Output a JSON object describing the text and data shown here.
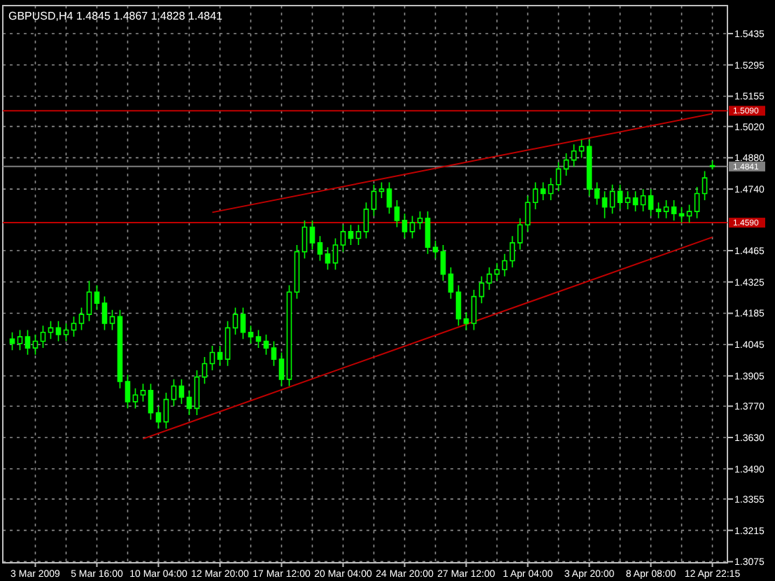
{
  "chart_data": {
    "type": "candlestick",
    "title": "GBPUSD,H4  1.4845 1.4867 1.4828 1.4841",
    "categories": [
      null,
      null,
      null,
      "3 Mar 2009",
      null,
      null,
      null,
      null,
      null,
      null,
      null,
      "5 Mar 16:00",
      null,
      null,
      null,
      null,
      null,
      null,
      null,
      "10 Mar 04:00",
      null,
      null,
      null,
      null,
      null,
      null,
      null,
      "12 Mar 20:00",
      null,
      null,
      null,
      null,
      null,
      null,
      null,
      "17 Mar 12:00",
      null,
      null,
      null,
      null,
      null,
      null,
      null,
      "20 Mar 04:00",
      null,
      null,
      null,
      null,
      null,
      null,
      null,
      "24 Mar 20:00",
      null,
      null,
      null,
      null,
      null,
      null,
      null,
      "27 Mar 12:00",
      null,
      null,
      null,
      null,
      null,
      null,
      null,
      "1 Apr 04:00",
      null,
      null,
      null,
      null,
      null,
      null,
      null,
      "3 Apr 20:00",
      null,
      null,
      null,
      null,
      null,
      null,
      null,
      "8 Apr 08:00",
      null,
      null,
      null,
      null,
      null,
      null,
      null,
      "12 Apr 22:15"
    ],
    "ylim": [
      1.307,
      1.556
    ],
    "yticks": [
      1.5435,
      1.5295,
      1.5155,
      {
        "value": 1.502,
        "label": "1.5020"
      },
      {
        "value": 1.488,
        "label": "1.4880"
      },
      {
        "value": 1.474,
        "label": "1.4740"
      },
      1.4465,
      1.4325,
      1.4185,
      1.4045,
      1.3905,
      {
        "value": 1.377,
        "label": "1.3770"
      },
      {
        "value": 1.363,
        "label": "1.3630"
      },
      {
        "value": 1.349,
        "label": "1.3490"
      },
      1.3355,
      1.3215,
      1.3075
    ],
    "grid": true,
    "ref_lines": [
      {
        "axis": "y",
        "value": 1.509,
        "label": "1.5090",
        "color": "#c00000"
      },
      {
        "axis": "y",
        "value": 1.459,
        "label": "1.4590",
        "color": "#c00000"
      },
      {
        "axis": "y",
        "value": 1.4841,
        "label": "1.4841",
        "color": "#808080"
      }
    ],
    "series": [
      {
        "type": "candlestick",
        "color": "#00ff00",
        "ohlc": [
          [
            1.407,
            1.41,
            1.402,
            1.405
          ],
          [
            1.405,
            1.411,
            1.402,
            1.408
          ],
          [
            1.408,
            1.411,
            1.4,
            1.403
          ],
          [
            1.403,
            1.409,
            1.4,
            1.406
          ],
          [
            1.406,
            1.413,
            1.403,
            1.41
          ],
          [
            1.41,
            1.415,
            1.407,
            1.412
          ],
          [
            1.412,
            1.415,
            1.406,
            1.409
          ],
          [
            1.409,
            1.414,
            1.406,
            1.411
          ],
          [
            1.411,
            1.417,
            1.408,
            1.414
          ],
          [
            1.414,
            1.421,
            1.411,
            1.418
          ],
          [
            1.418,
            1.433,
            1.415,
            1.428
          ],
          [
            1.428,
            1.431,
            1.42,
            1.423
          ],
          [
            1.423,
            1.426,
            1.411,
            1.414
          ],
          [
            1.414,
            1.42,
            1.411,
            1.417
          ],
          [
            1.417,
            1.42,
            1.385,
            1.388
          ],
          [
            1.388,
            1.391,
            1.376,
            1.379
          ],
          [
            1.379,
            1.385,
            1.376,
            1.382
          ],
          [
            1.382,
            1.387,
            1.379,
            1.384
          ],
          [
            1.384,
            1.387,
            1.371,
            1.374
          ],
          [
            1.374,
            1.377,
            1.367,
            1.37
          ],
          [
            1.37,
            1.383,
            1.367,
            1.38
          ],
          [
            1.38,
            1.389,
            1.377,
            1.386
          ],
          [
            1.386,
            1.389,
            1.378,
            1.381
          ],
          [
            1.381,
            1.384,
            1.373,
            1.376
          ],
          [
            1.376,
            1.393,
            1.373,
            1.39
          ],
          [
            1.39,
            1.399,
            1.387,
            1.396
          ],
          [
            1.396,
            1.404,
            1.393,
            1.401
          ],
          [
            1.401,
            1.404,
            1.395,
            1.398
          ],
          [
            1.398,
            1.415,
            1.395,
            1.412
          ],
          [
            1.412,
            1.421,
            1.409,
            1.418
          ],
          [
            1.418,
            1.421,
            1.407,
            1.41
          ],
          [
            1.41,
            1.413,
            1.405,
            1.408
          ],
          [
            1.408,
            1.411,
            1.403,
            1.406
          ],
          [
            1.406,
            1.409,
            1.4,
            1.403
          ],
          [
            1.403,
            1.406,
            1.395,
            1.398
          ],
          [
            1.398,
            1.401,
            1.386,
            1.389
          ],
          [
            1.389,
            1.431,
            1.386,
            1.428
          ],
          [
            1.428,
            1.449,
            1.425,
            1.446
          ],
          [
            1.446,
            1.46,
            1.443,
            1.457
          ],
          [
            1.457,
            1.46,
            1.447,
            1.45
          ],
          [
            1.45,
            1.453,
            1.442,
            1.445
          ],
          [
            1.445,
            1.448,
            1.438,
            1.441
          ],
          [
            1.441,
            1.452,
            1.438,
            1.449
          ],
          [
            1.449,
            1.458,
            1.446,
            1.455
          ],
          [
            1.455,
            1.458,
            1.449,
            1.452
          ],
          [
            1.452,
            1.458,
            1.449,
            1.455
          ],
          [
            1.455,
            1.468,
            1.452,
            1.465
          ],
          [
            1.465,
            1.476,
            1.462,
            1.473
          ],
          [
            1.473,
            1.477,
            1.47,
            1.474
          ],
          [
            1.474,
            1.477,
            1.463,
            1.466
          ],
          [
            1.466,
            1.469,
            1.457,
            1.46
          ],
          [
            1.46,
            1.463,
            1.452,
            1.455
          ],
          [
            1.455,
            1.462,
            1.452,
            1.459
          ],
          [
            1.459,
            1.464,
            1.456,
            1.461
          ],
          [
            1.461,
            1.464,
            1.445,
            1.448
          ],
          [
            1.448,
            1.451,
            1.443,
            1.446
          ],
          [
            1.446,
            1.449,
            1.433,
            1.436
          ],
          [
            1.436,
            1.439,
            1.425,
            1.428
          ],
          [
            1.428,
            1.431,
            1.413,
            1.416
          ],
          [
            1.416,
            1.419,
            1.411,
            1.414
          ],
          [
            1.414,
            1.429,
            1.411,
            1.426
          ],
          [
            1.426,
            1.435,
            1.423,
            1.432
          ],
          [
            1.432,
            1.439,
            1.429,
            1.436
          ],
          [
            1.436,
            1.441,
            1.433,
            1.438
          ],
          [
            1.438,
            1.445,
            1.435,
            1.442
          ],
          [
            1.442,
            1.453,
            1.439,
            1.45
          ],
          [
            1.45,
            1.461,
            1.447,
            1.458
          ],
          [
            1.458,
            1.471,
            1.455,
            1.468
          ],
          [
            1.468,
            1.477,
            1.465,
            1.474
          ],
          [
            1.474,
            1.477,
            1.469,
            1.472
          ],
          [
            1.472,
            1.479,
            1.469,
            1.476
          ],
          [
            1.476,
            1.486,
            1.473,
            1.483
          ],
          [
            1.483,
            1.49,
            1.48,
            1.487
          ],
          [
            1.487,
            1.494,
            1.484,
            1.491
          ],
          [
            1.491,
            1.496,
            1.488,
            1.493
          ],
          [
            1.493,
            1.496,
            1.471,
            1.474
          ],
          [
            1.474,
            1.477,
            1.467,
            1.47
          ],
          [
            1.47,
            1.473,
            1.461,
            1.466
          ],
          [
            1.466,
            1.476,
            1.463,
            1.473
          ],
          [
            1.473,
            1.476,
            1.465,
            1.468
          ],
          [
            1.468,
            1.473,
            1.465,
            1.47
          ],
          [
            1.47,
            1.473,
            1.464,
            1.467
          ],
          [
            1.467,
            1.474,
            1.464,
            1.471
          ],
          [
            1.471,
            1.474,
            1.462,
            1.465
          ],
          [
            1.465,
            1.468,
            1.461,
            1.464
          ],
          [
            1.464,
            1.469,
            1.461,
            1.466
          ],
          [
            1.466,
            1.469,
            1.46,
            1.463
          ],
          [
            1.463,
            1.466,
            1.459,
            1.462
          ],
          [
            1.462,
            1.467,
            1.459,
            1.464
          ],
          [
            1.464,
            1.475,
            1.461,
            1.472
          ],
          [
            1.472,
            1.482,
            1.469,
            1.479
          ],
          [
            1.4845,
            1.4867,
            1.4828,
            1.4841
          ]
        ]
      },
      {
        "type": "line",
        "color": "#c00000",
        "values": [
          null,
          null,
          null,
          null,
          null,
          null,
          null,
          null,
          null,
          null,
          null,
          null,
          null,
          null,
          null,
          null,
          null,
          1.3624,
          null,
          null,
          null,
          null,
          null,
          null,
          null,
          null,
          null,
          null,
          null,
          null,
          null,
          null,
          null,
          null,
          null,
          null,
          null,
          null,
          null,
          null,
          null,
          null,
          null,
          null,
          null,
          null,
          null,
          null,
          null,
          null,
          null,
          null,
          null,
          null,
          null,
          null,
          null,
          null,
          null,
          null,
          null,
          null,
          null,
          null,
          null,
          null,
          null,
          null,
          null,
          null,
          null,
          null,
          null,
          null,
          null,
          null,
          null,
          null,
          null,
          null,
          null,
          null,
          null,
          null,
          null,
          null,
          null,
          null,
          null,
          null,
          null,
          1.4525
        ]
      },
      {
        "type": "line",
        "color": "#c00000",
        "values": [
          null,
          null,
          null,
          null,
          null,
          null,
          null,
          null,
          null,
          null,
          null,
          null,
          null,
          null,
          null,
          null,
          null,
          null,
          null,
          null,
          null,
          null,
          null,
          null,
          null,
          null,
          1.4636,
          null,
          null,
          null,
          null,
          null,
          null,
          null,
          null,
          null,
          null,
          null,
          null,
          null,
          null,
          null,
          null,
          null,
          null,
          null,
          null,
          null,
          null,
          null,
          null,
          null,
          null,
          null,
          null,
          null,
          null,
          null,
          null,
          null,
          null,
          null,
          null,
          null,
          null,
          null,
          null,
          null,
          null,
          null,
          null,
          null,
          null,
          null,
          null,
          null,
          null,
          null,
          null,
          null,
          null,
          null,
          null,
          null,
          null,
          null,
          null,
          null,
          null,
          null,
          null,
          1.5077
        ]
      }
    ]
  }
}
